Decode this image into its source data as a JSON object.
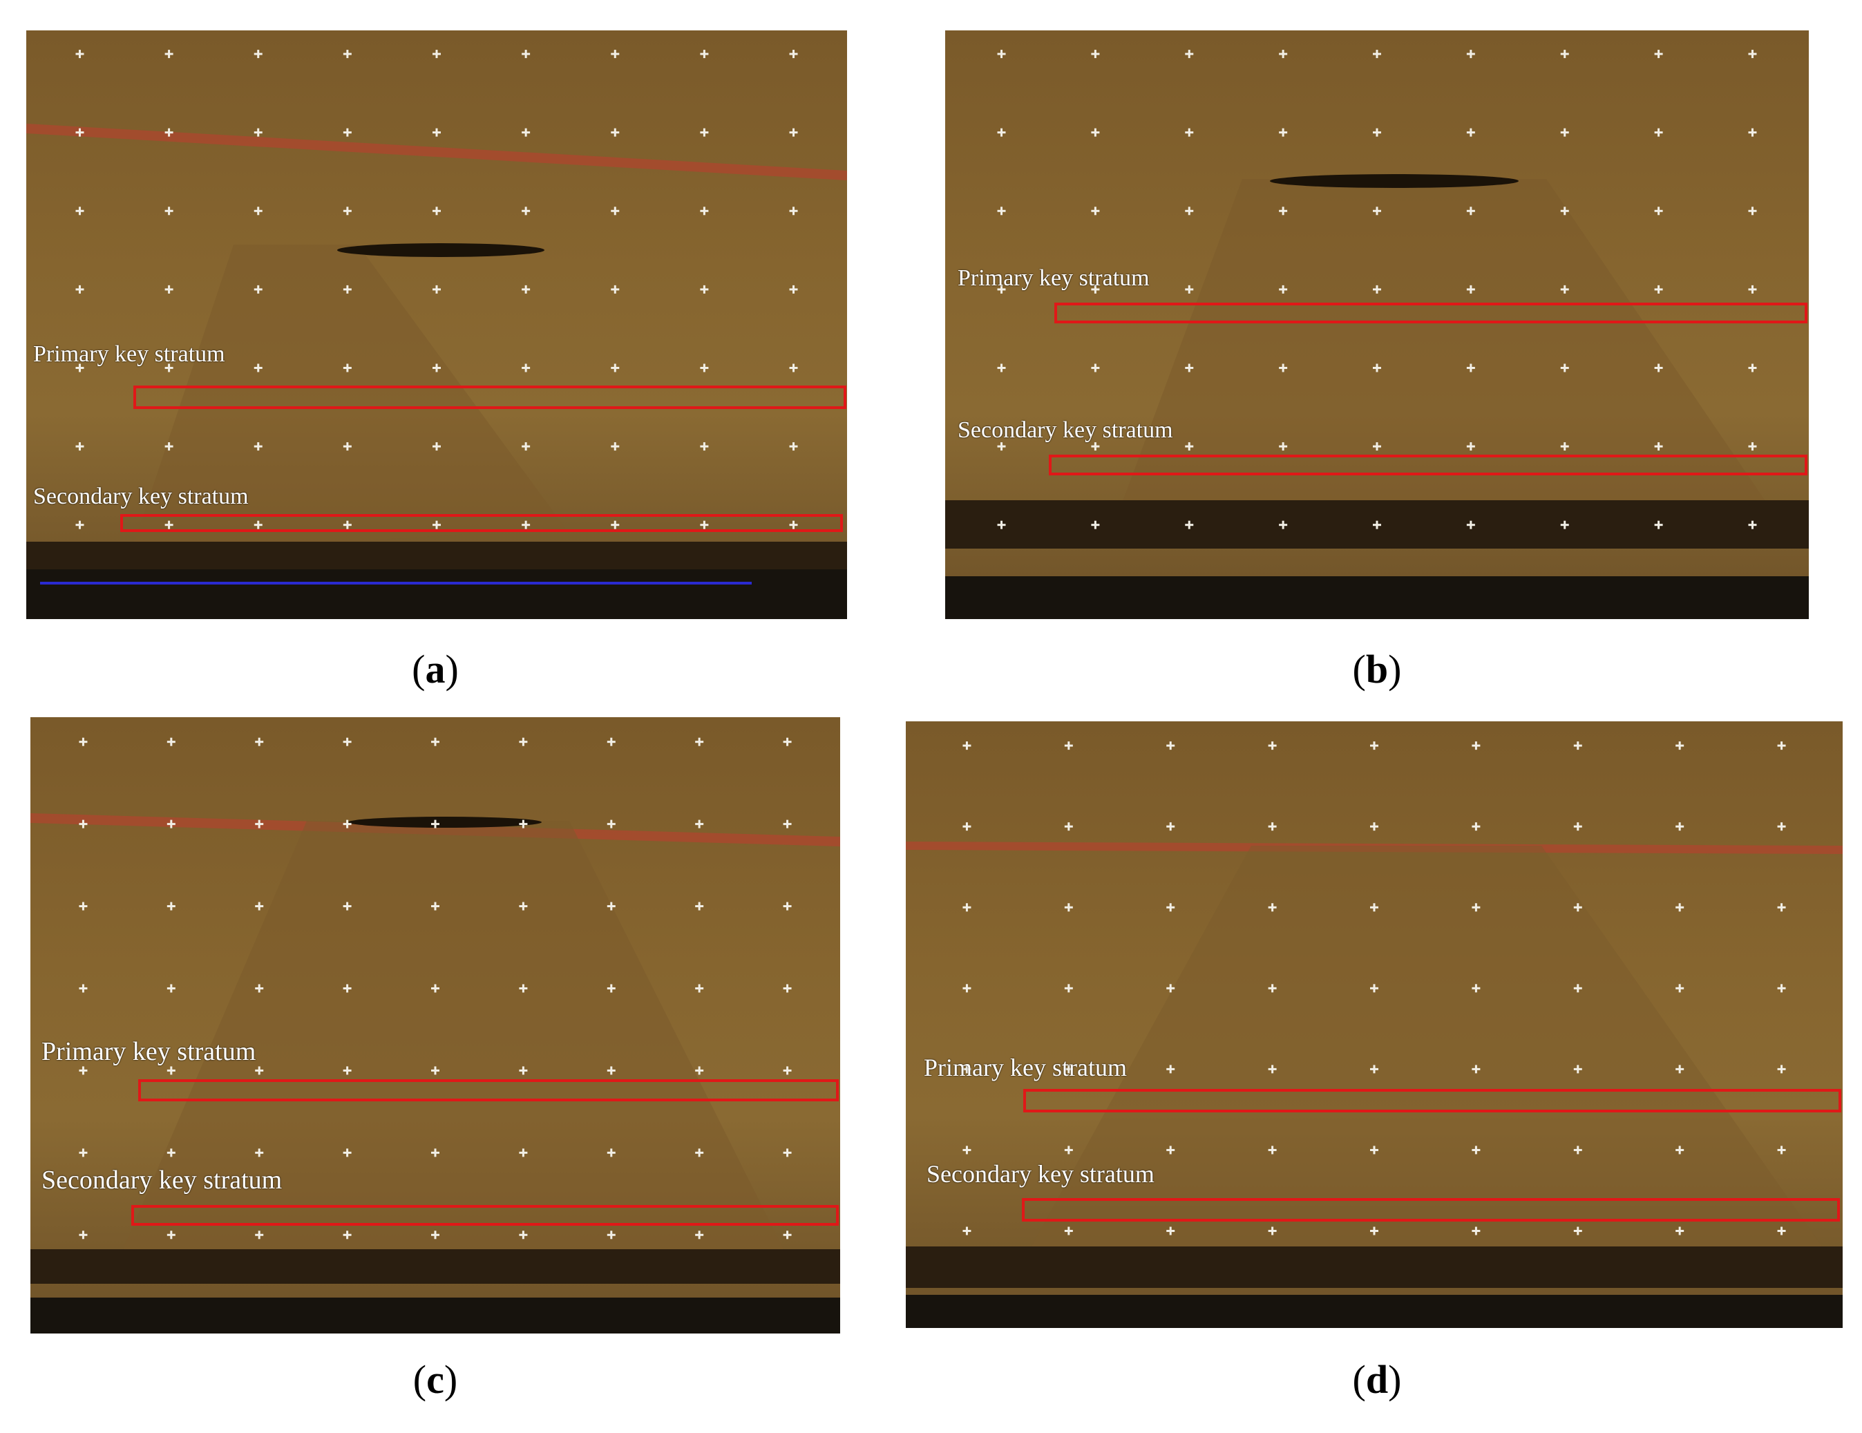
{
  "panels": [
    {
      "id": "a",
      "caption": "a",
      "primary_label": "Primary key stratum",
      "secondary_label": "Secondary key stratum"
    },
    {
      "id": "b",
      "caption": "b",
      "primary_label": "Primary key stratum",
      "secondary_label": "Secondary key stratum"
    },
    {
      "id": "c",
      "caption": "c",
      "primary_label": "Primary key stratum",
      "secondary_label": "Secondary key stratum"
    },
    {
      "id": "d",
      "caption": "d",
      "primary_label": "Primary key stratum",
      "secondary_label": "Secondary key stratum"
    }
  ],
  "colors": {
    "highlight_box": "#e01818",
    "label_text": "#ffffff",
    "rock_model": "#86652f"
  }
}
